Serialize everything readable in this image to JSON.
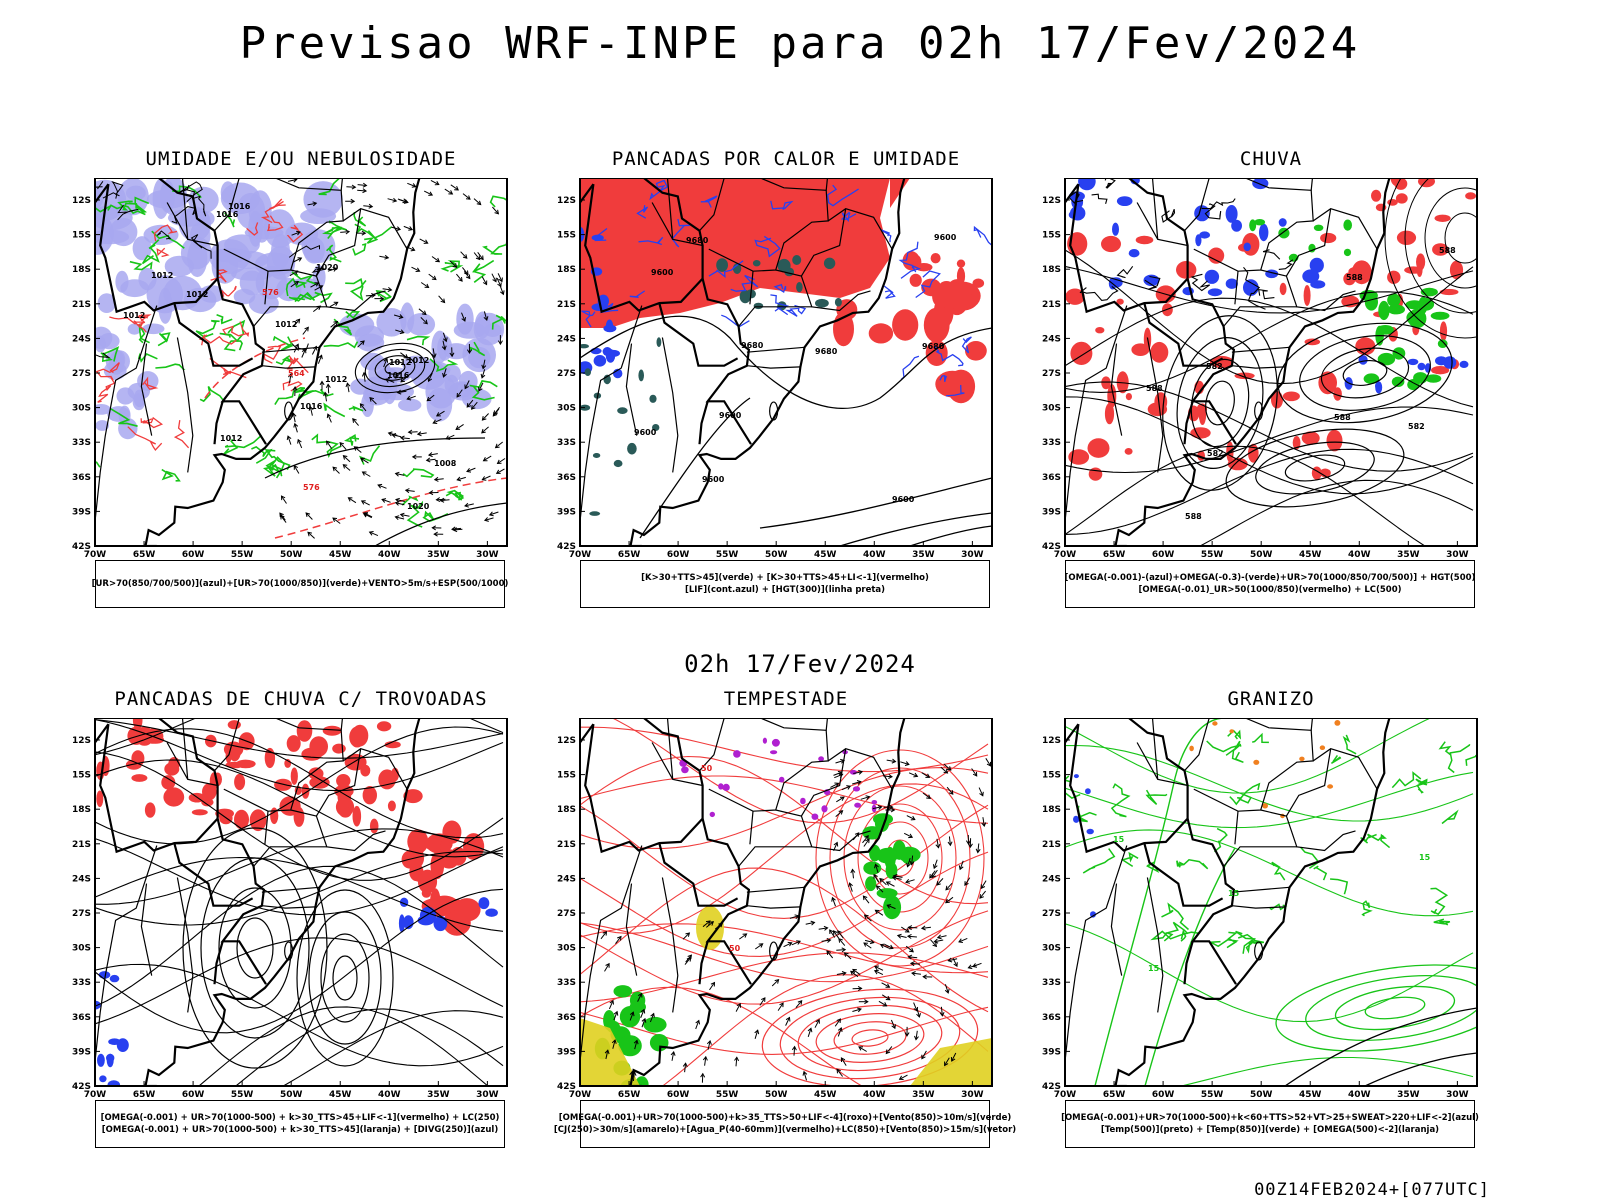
{
  "title": "Previsao WRF-INPE  para 02h 17/Fev/2024",
  "subtitle": "02h 17/Fev/2024",
  "footer": "00Z14FEB2024+[077UTC]",
  "axes": {
    "lat_labels": [
      "12S",
      "15S",
      "18S",
      "21S",
      "24S",
      "27S",
      "30S",
      "33S",
      "36S",
      "39S",
      "42S"
    ],
    "lon_labels": [
      "70W",
      "65W",
      "60W",
      "55W",
      "50W",
      "45W",
      "40W",
      "35W",
      "30W"
    ]
  },
  "colors": {
    "red": "#f03c3c",
    "green": "#18c418",
    "blue": "#2840f0",
    "lavender": "#a8a8f0",
    "yellow": "#e0d020",
    "purple": "#b020d0",
    "orange": "#f08020",
    "darkteal": "#2a5a58",
    "black": "#000000"
  },
  "panels": [
    {
      "title": "UMIDADE E/OU NEBULOSIDADE",
      "legend": [
        "[UR>70(850/700/500)](azul)+[UR>70(1000/850)](verde)+VENTO>5m/s+ESP(500/1000)"
      ],
      "labels": [
        "1012",
        "1012",
        "1012",
        "1016",
        "1012",
        "1020",
        "1012",
        "1012",
        "1008",
        "1016",
        "1016",
        "1012",
        "1020",
        "1012",
        "1016",
        "576",
        "576",
        "564"
      ]
    },
    {
      "title": "PANCADAS POR CALOR E UMIDADE",
      "legend": [
        "[K>30+TTS>45](verde) + [K>30+TTS>45+LI<-1](vermelho)",
        "[LIF](cont.azul) + [HGT(300)](linha preta)"
      ],
      "labels": [
        "9680",
        "9680",
        "9680",
        "9600",
        "9600",
        "9600",
        "9680",
        "9600",
        "9600",
        "9600"
      ]
    },
    {
      "title": "CHUVA",
      "legend": [
        "[OMEGA(-0.001)-(azul)+OMEGA(-0.3)-(verde)+UR>70(1000/850/700/500)] + HGT(500)",
        "[OMEGA(-0.01)_UR>50(1000/850)(vermelho) + LC(500)"
      ],
      "labels": [
        "588",
        "588",
        "582",
        "582",
        "582",
        "588",
        "588",
        "588"
      ]
    },
    {
      "title": "PANCADAS DE CHUVA C/ TROVOADAS",
      "legend": [
        "[OMEGA(-0.001) + UR>70(1000-500) + k>30_TTS>45+LIF<-1](vermelho) + LC(250)",
        "[OMEGA(-0.001) + UR>70(1000-500) + k>30_TTS>45](laranja) + [DIVG(250)](azul)"
      ],
      "labels": []
    },
    {
      "title": "TEMPESTADE",
      "legend": [
        "[OMEGA(-0.001)+UR>70(1000-500)+k>35_TTS>50+LIF<-4](roxo)+[Vento(850)>10m/s](verde)",
        "[CJ(250)>30m/s](amarelo)+[Agua_P(40-60mm)](vermelho)+LC(850)+[Vento(850)>15m/s](vetor)"
      ],
      "labels": [
        "50",
        "50"
      ]
    },
    {
      "title": "GRANIZO",
      "legend": [
        "[OMEGA(-0.001)+UR>70(1000-500)+k<60+TTS>52+VT>25+SWEAT>220+LIF<-2](azul)",
        "[Temp(500)](preto) + [Temp(850)](verde) + [OMEGA(500)<-2](laranja)"
      ],
      "labels": [
        "15",
        "15",
        "15",
        "15"
      ]
    }
  ]
}
